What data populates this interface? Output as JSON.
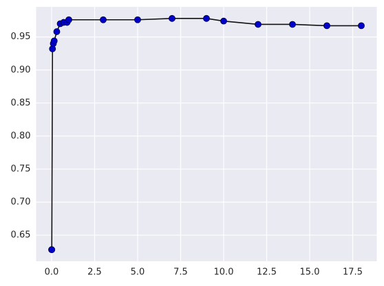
{
  "chart_data": {
    "type": "line",
    "x": [
      0.001,
      0.01,
      0.05,
      0.1,
      0.15,
      0.3,
      0.5,
      0.7,
      0.9,
      1,
      3,
      5,
      7,
      9,
      10,
      12,
      14,
      16,
      18
    ],
    "series": [
      {
        "color": "#111111",
        "marker_color": "#0000cc",
        "values": [
          0.628,
          0.628,
          0.932,
          0.94,
          0.944,
          0.958,
          0.97,
          0.972,
          0.972,
          0.976,
          0.976,
          0.976,
          0.978,
          0.978,
          0.974,
          0.969,
          0.969,
          0.967,
          0.967
        ]
      }
    ],
    "xlim": [
      -0.9,
      18.9
    ],
    "ylim": [
      0.6105,
      0.9955
    ],
    "xticks": [
      {
        "value": 0,
        "label": "0.0"
      },
      2.5,
      {
        "value": 5,
        "label": "5.0"
      },
      7.5,
      {
        "value": 10,
        "label": "10.0"
      },
      12.5,
      {
        "value": 15,
        "label": "15.0"
      },
      17.5
    ],
    "yticks": [
      0.65,
      {
        "value": 0.7,
        "label": "0.70"
      },
      0.75,
      {
        "value": 0.8,
        "label": "0.80"
      },
      0.85,
      {
        "value": 0.9,
        "label": "0.90"
      },
      0.95
    ],
    "grid": true,
    "background": "#eaeaf2"
  }
}
